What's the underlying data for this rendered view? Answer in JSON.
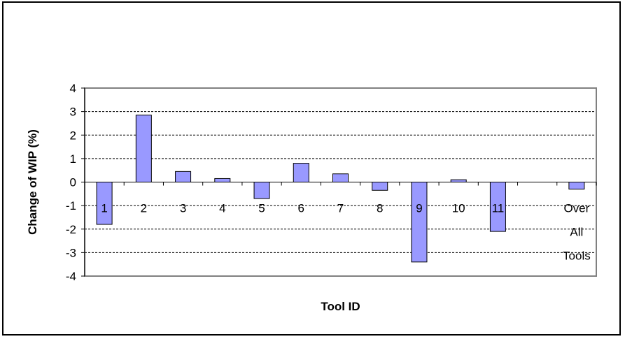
{
  "chart_data": {
    "type": "bar",
    "title": "",
    "xlabel": "Tool ID",
    "ylabel": "Change of WIP (%)",
    "ylim": [
      -4,
      4
    ],
    "yticks": [
      4,
      3,
      2,
      1,
      0,
      -1,
      -2,
      -3,
      -4
    ],
    "grid": true,
    "legend": "none",
    "bar_color": "#9999ff",
    "categories": [
      {
        "lines": [
          "1"
        ]
      },
      {
        "lines": [
          "2"
        ]
      },
      {
        "lines": [
          "3"
        ]
      },
      {
        "lines": [
          "4"
        ]
      },
      {
        "lines": [
          "5"
        ]
      },
      {
        "lines": [
          "6"
        ]
      },
      {
        "lines": [
          "7"
        ]
      },
      {
        "lines": [
          "8"
        ]
      },
      {
        "lines": [
          "9"
        ]
      },
      {
        "lines": [
          "10"
        ]
      },
      {
        "lines": [
          "11"
        ]
      },
      {
        "lines": []
      },
      {
        "lines": [
          "Over",
          "All",
          "Tools"
        ]
      }
    ],
    "values": [
      -1.8,
      2.85,
      0.45,
      0.15,
      -0.7,
      0.8,
      0.35,
      -0.35,
      -3.4,
      0.1,
      -2.1,
      null,
      -0.3
    ]
  }
}
